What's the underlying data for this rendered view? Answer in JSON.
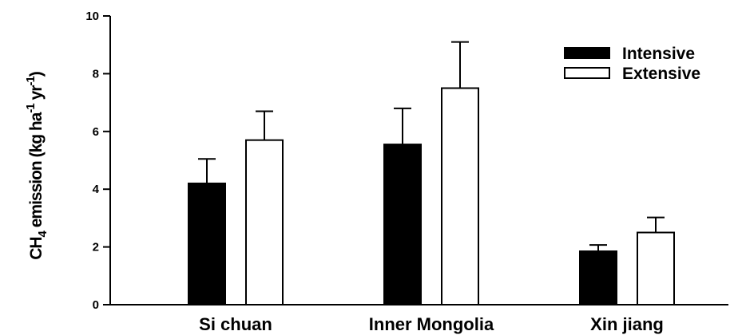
{
  "chart_data": {
    "type": "bar",
    "categories": [
      "Si chuan",
      "Inner Mongolia",
      "Xin jiang"
    ],
    "series": [
      {
        "name": "Intensive",
        "values": [
          4.2,
          5.55,
          1.85
        ],
        "errors": [
          0.85,
          1.25,
          0.22
        ],
        "color": "#000000"
      },
      {
        "name": "Extensive",
        "values": [
          5.7,
          7.5,
          2.5
        ],
        "errors": [
          1.0,
          1.6,
          0.52
        ],
        "color": "#ffffff"
      }
    ],
    "ylabel": {
      "prefix": "CH",
      "prefix_sub": "4",
      "text": " emission (kg ha",
      "sup1": "-1",
      "mid": " yr",
      "sup2": "-1",
      "suffix": ")"
    },
    "ylim": [
      0,
      10
    ],
    "yticks": [
      "0",
      "2",
      "4",
      "6",
      "8",
      "10"
    ],
    "legend_position": "top-right",
    "grid": false
  }
}
